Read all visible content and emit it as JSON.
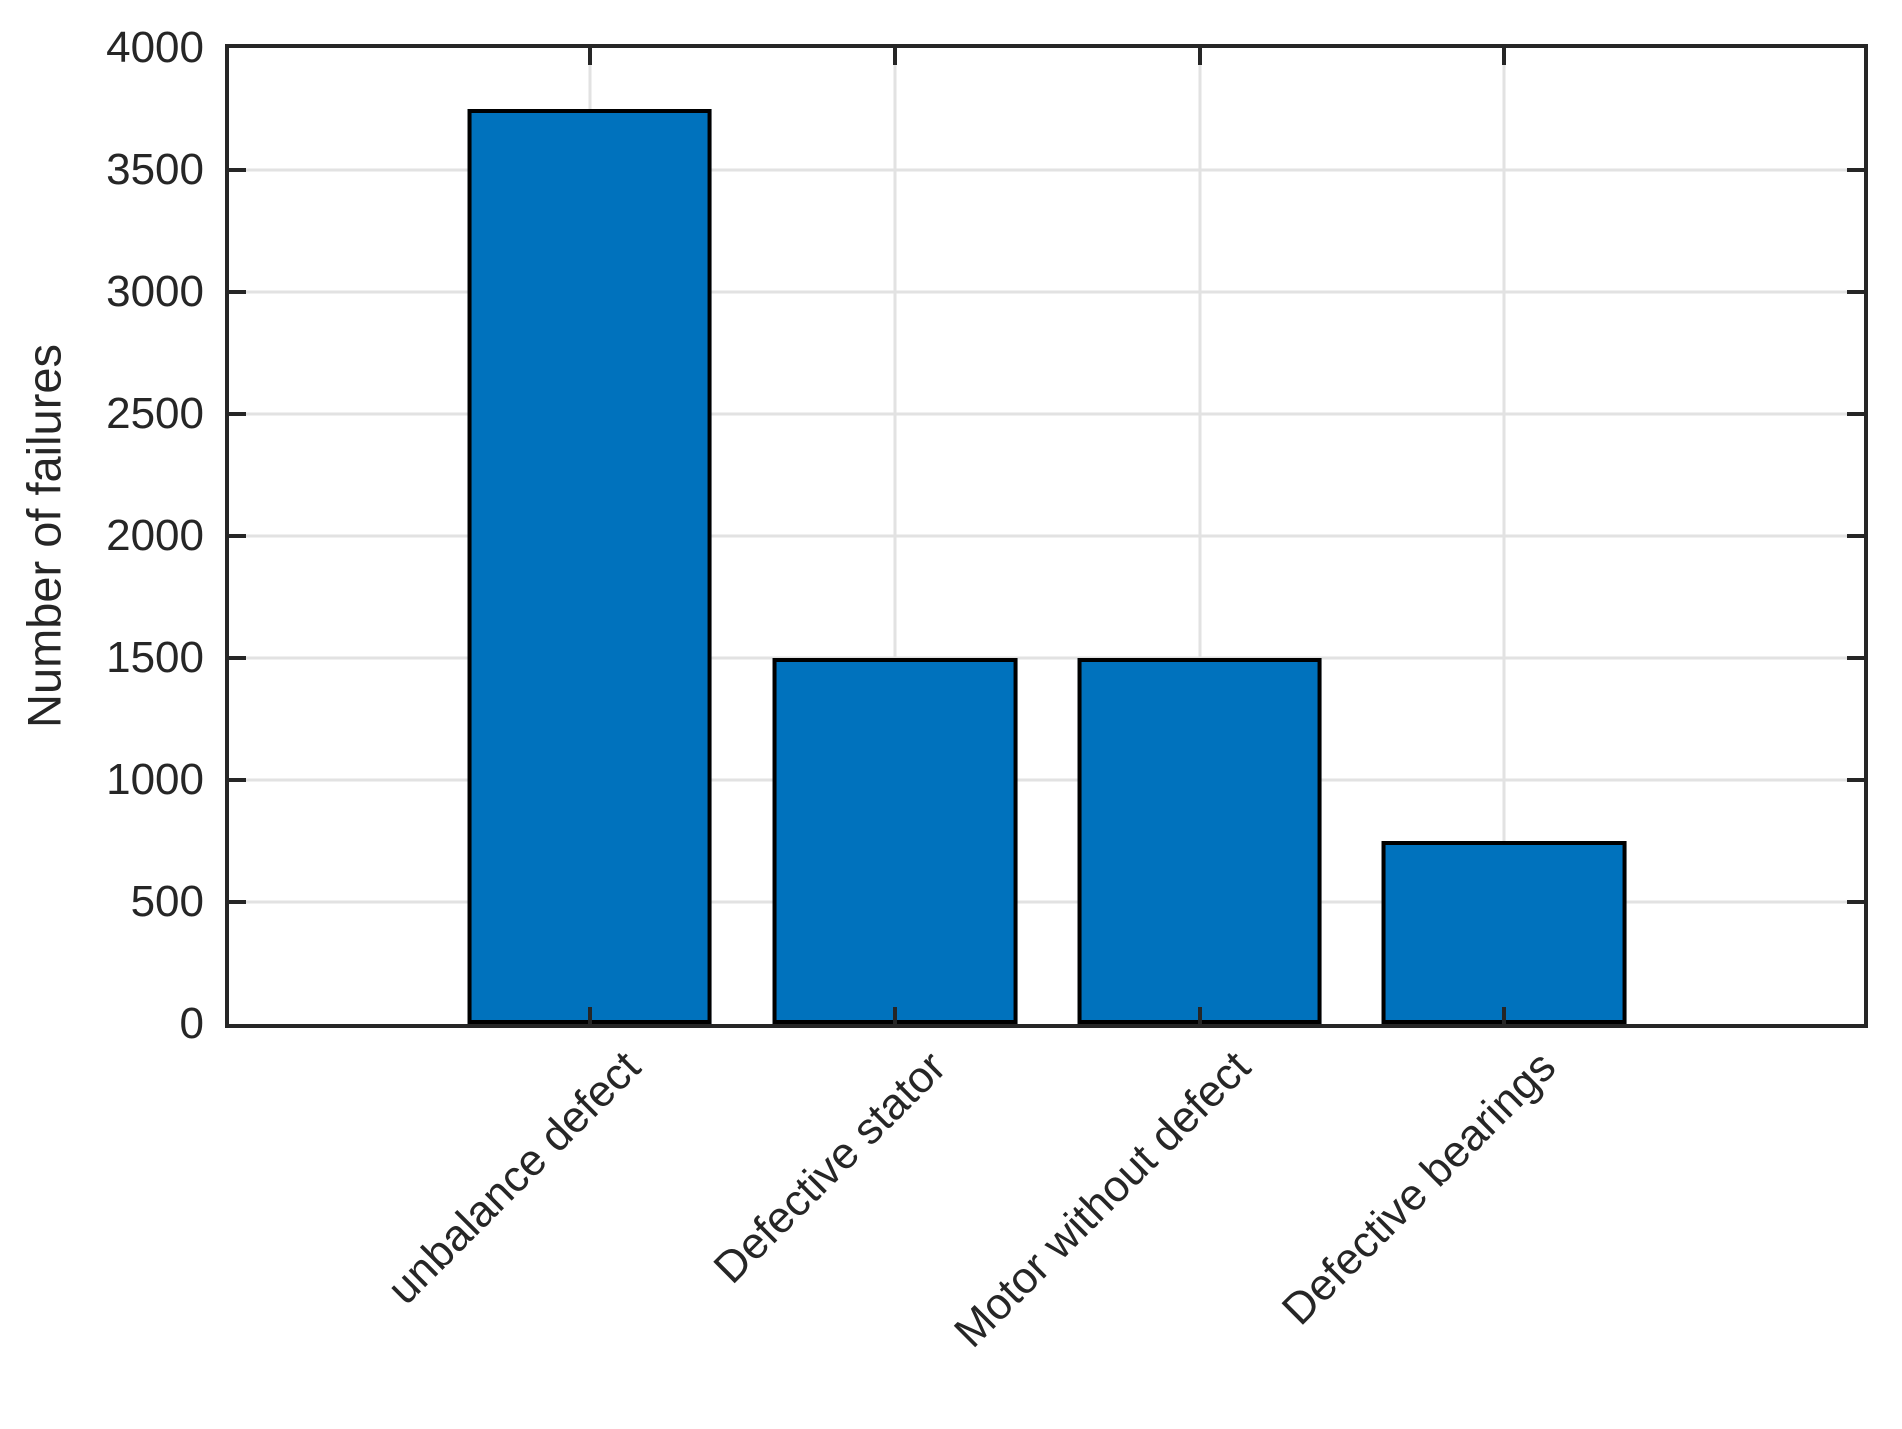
{
  "figure": {
    "background": "#FFFFFF"
  },
  "chart_data": {
    "type": "bar",
    "title": "",
    "categories": [
      "unbalance defect",
      "Defective stator",
      "Motor without defect",
      "Defective bearings"
    ],
    "values": [
      3750,
      1500,
      1500,
      750
    ],
    "xlabel": "",
    "ylabel": "Number of failures",
    "ylim": [
      0,
      4000
    ],
    "yticks": [
      0,
      500,
      1000,
      1500,
      2000,
      2500,
      3000,
      3500,
      4000
    ],
    "grid": true,
    "legend_position": "none",
    "bar_color": "#0072BD",
    "bar_edge_color": "#000000",
    "axis_color": "#262626",
    "grid_color": "#E2E2E2",
    "tick_label_color": "#262626"
  }
}
